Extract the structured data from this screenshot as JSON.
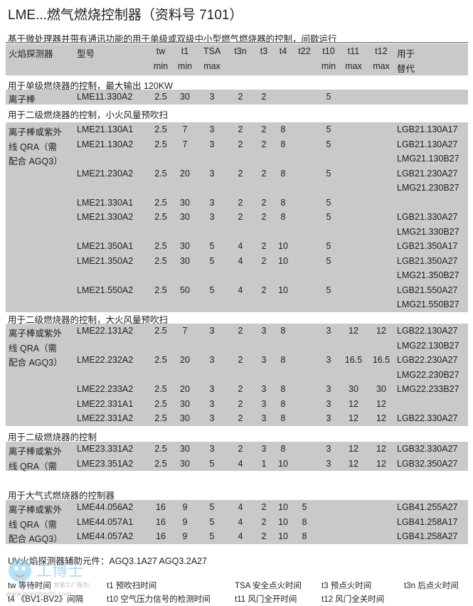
{
  "title": "LME...燃气燃烧控制器（资料号 7101）",
  "subtitle": "基于微处理器并带有通讯功能的用于单级或双级中小型燃气燃烧器的控制，间歇运行",
  "header": {
    "row1": [
      "火焰探测器",
      "型号",
      "tw",
      "t1",
      "TSA",
      "t3n",
      "t3",
      "t4",
      "t22",
      "t10",
      "t11",
      "t12",
      "用于"
    ],
    "row2": [
      "",
      "",
      "min",
      "min",
      "max",
      "",
      "",
      "",
      "",
      "min",
      "max",
      "max",
      "替代"
    ]
  },
  "groups": [
    {
      "title": "用于单级燃烧器的控制，最大输出 120KW",
      "rows": [
        [
          "离子棒",
          "LME11.330A2",
          "2.5",
          "30",
          "3",
          "2",
          "2",
          "",
          "",
          "5",
          "",
          "",
          ""
        ]
      ]
    },
    {
      "title": "用于二级燃烧器的控制，小火风量预吹扫",
      "rows": [
        [
          "离子棒或紫外",
          "LME21.130A1",
          "2.5",
          "7",
          "3",
          "2",
          "2",
          "8",
          "",
          "5",
          "",
          "",
          "LGB21.130A17"
        ],
        [
          "线 QRA（需",
          "LME21.130A2",
          "2.5",
          "7",
          "3",
          "2",
          "2",
          "8",
          "",
          "5",
          "",
          "",
          "LGB21.130A27"
        ],
        [
          "配合 AGQ3）",
          "",
          "",
          "",
          "",
          "",
          "",
          "",
          "",
          "",
          "",
          "",
          "LMG21.130B27"
        ],
        [
          "",
          "LME21.230A2",
          "2.5",
          "20",
          "3",
          "2",
          "2",
          "8",
          "",
          "5",
          "",
          "",
          "LGB21.230A27"
        ],
        [
          "",
          "",
          "",
          "",
          "",
          "",
          "",
          "",
          "",
          "",
          "",
          "",
          "LMG21.230B27"
        ],
        [
          "",
          "LME21.330A1",
          "2.5",
          "30",
          "3",
          "2",
          "2",
          "8",
          "",
          "5",
          "",
          "",
          ""
        ],
        [
          "",
          "LME21.330A2",
          "2.5",
          "30",
          "3",
          "2",
          "2",
          "8",
          "",
          "5",
          "",
          "",
          "LGB21.330A27"
        ],
        [
          "",
          "",
          "",
          "",
          "",
          "",
          "",
          "",
          "",
          "",
          "",
          "",
          "LMG21.330B27"
        ],
        [
          "",
          "LME21.350A1",
          "2.5",
          "30",
          "5",
          "4",
          "2",
          "10",
          "",
          "5",
          "",
          "",
          "LGB21.350A17"
        ],
        [
          "",
          "LME21.350A2",
          "2.5",
          "30",
          "5",
          "4",
          "2",
          "10",
          "",
          "5",
          "",
          "",
          "LGB21.350A27"
        ],
        [
          "",
          "",
          "",
          "",
          "",
          "",
          "",
          "",
          "",
          "",
          "",
          "",
          "LMG21.350B27"
        ],
        [
          "",
          "LME21.550A2",
          "2.5",
          "50",
          "5",
          "4",
          "2",
          "10",
          "",
          "5",
          "",
          "",
          "LGB21.550A27"
        ],
        [
          "",
          "",
          "",
          "",
          "",
          "",
          "",
          "",
          "",
          "",
          "",
          "",
          "LMG21.550B27"
        ]
      ]
    },
    {
      "title": "用于二级燃烧器的控制，大火风量预吹扫",
      "rows": [
        [
          "离子棒或紫外",
          "LME22.131A2",
          "2.5",
          "7",
          "3",
          "2",
          "3",
          "8",
          "",
          "3",
          "12",
          "12",
          "LGB22.130A27"
        ],
        [
          "线 QRA（需",
          "",
          "",
          "",
          "",
          "",
          "",
          "",
          "",
          "",
          "",
          "",
          "LMG22.130B27"
        ],
        [
          "配合 AGQ3）",
          "LME22.232A2",
          "2.5",
          "20",
          "3",
          "2",
          "3",
          "8",
          "",
          "3",
          "16.5",
          "16.5",
          "LGB22.230A27"
        ],
        [
          "",
          "",
          "",
          "",
          "",
          "",
          "",
          "",
          "",
          "",
          "",
          "",
          "LMG22.230B27"
        ],
        [
          "",
          "LME22.233A2",
          "2.5",
          "20",
          "3",
          "2",
          "3",
          "8",
          "",
          "3",
          "30",
          "30",
          "LMG22.233B27"
        ],
        [
          "",
          "LME22.331A1",
          "2.5",
          "30",
          "3",
          "2",
          "3",
          "8",
          "",
          "3",
          "12",
          "12",
          ""
        ],
        [
          "",
          "LME22.331A2",
          "2.5",
          "30",
          "3",
          "2",
          "3",
          "8",
          "",
          "3",
          "12",
          "12",
          "LGB22.330A27"
        ]
      ]
    },
    {
      "title": "用于二级燃烧器的控制",
      "rows": [
        [
          "离子棒或紫外",
          "LME23.331A2",
          "2.5",
          "30",
          "3",
          "2",
          "3",
          "8",
          "",
          "3",
          "12",
          "12",
          "LGB32.330A27"
        ],
        [
          "线 QRA（需",
          "LME23.351A2",
          "2.5",
          "30",
          "5",
          "4",
          "1",
          "10",
          "",
          "3",
          "12",
          "12",
          "LGB32.350A27"
        ]
      ]
    },
    {
      "title": "用于大气式燃烧器的控制器",
      "rows": [
        [
          "离子棒或紫外",
          "LME44.056A2",
          "16",
          "9",
          "5",
          "4",
          "2",
          "10",
          "5",
          "",
          "",
          "",
          "LGB41.255A27"
        ],
        [
          "线 QRA（需",
          "LME44.057A1",
          "16",
          "9",
          "5",
          "4",
          "2",
          "10",
          "8",
          "",
          "",
          "",
          "LGB41.258A17"
        ],
        [
          "配合 AGQ3）",
          "LME44.057A2",
          "16",
          "9",
          "5",
          "4",
          "2",
          "10",
          "8",
          "",
          "",
          "",
          "LGB41.258A27"
        ]
      ]
    }
  ],
  "groups_partial_note": "",
  "footnote": "UV火焰探测器辅助元件：AGQ3.1A27 AGQ3.2A27",
  "legend": [
    [
      "tw",
      "等待时间"
    ],
    [
      "t1",
      "预吹扫时间"
    ],
    [
      "TSA",
      "安全点火时间"
    ],
    [
      "t3",
      "预点火时间"
    ],
    [
      "t3n",
      "后点火时间"
    ],
    [
      "t4",
      "《BV1-BV2》间隔"
    ],
    [
      "t10",
      "空气压力信号的检测时间"
    ],
    [
      "t11",
      "风门全开时间"
    ],
    [
      "t12",
      "风门全关时间"
    ]
  ],
  "watermark": {
    "text": "工博士",
    "tagline": "智能工厂服务商",
    "url": "www.gongboshi.com"
  }
}
